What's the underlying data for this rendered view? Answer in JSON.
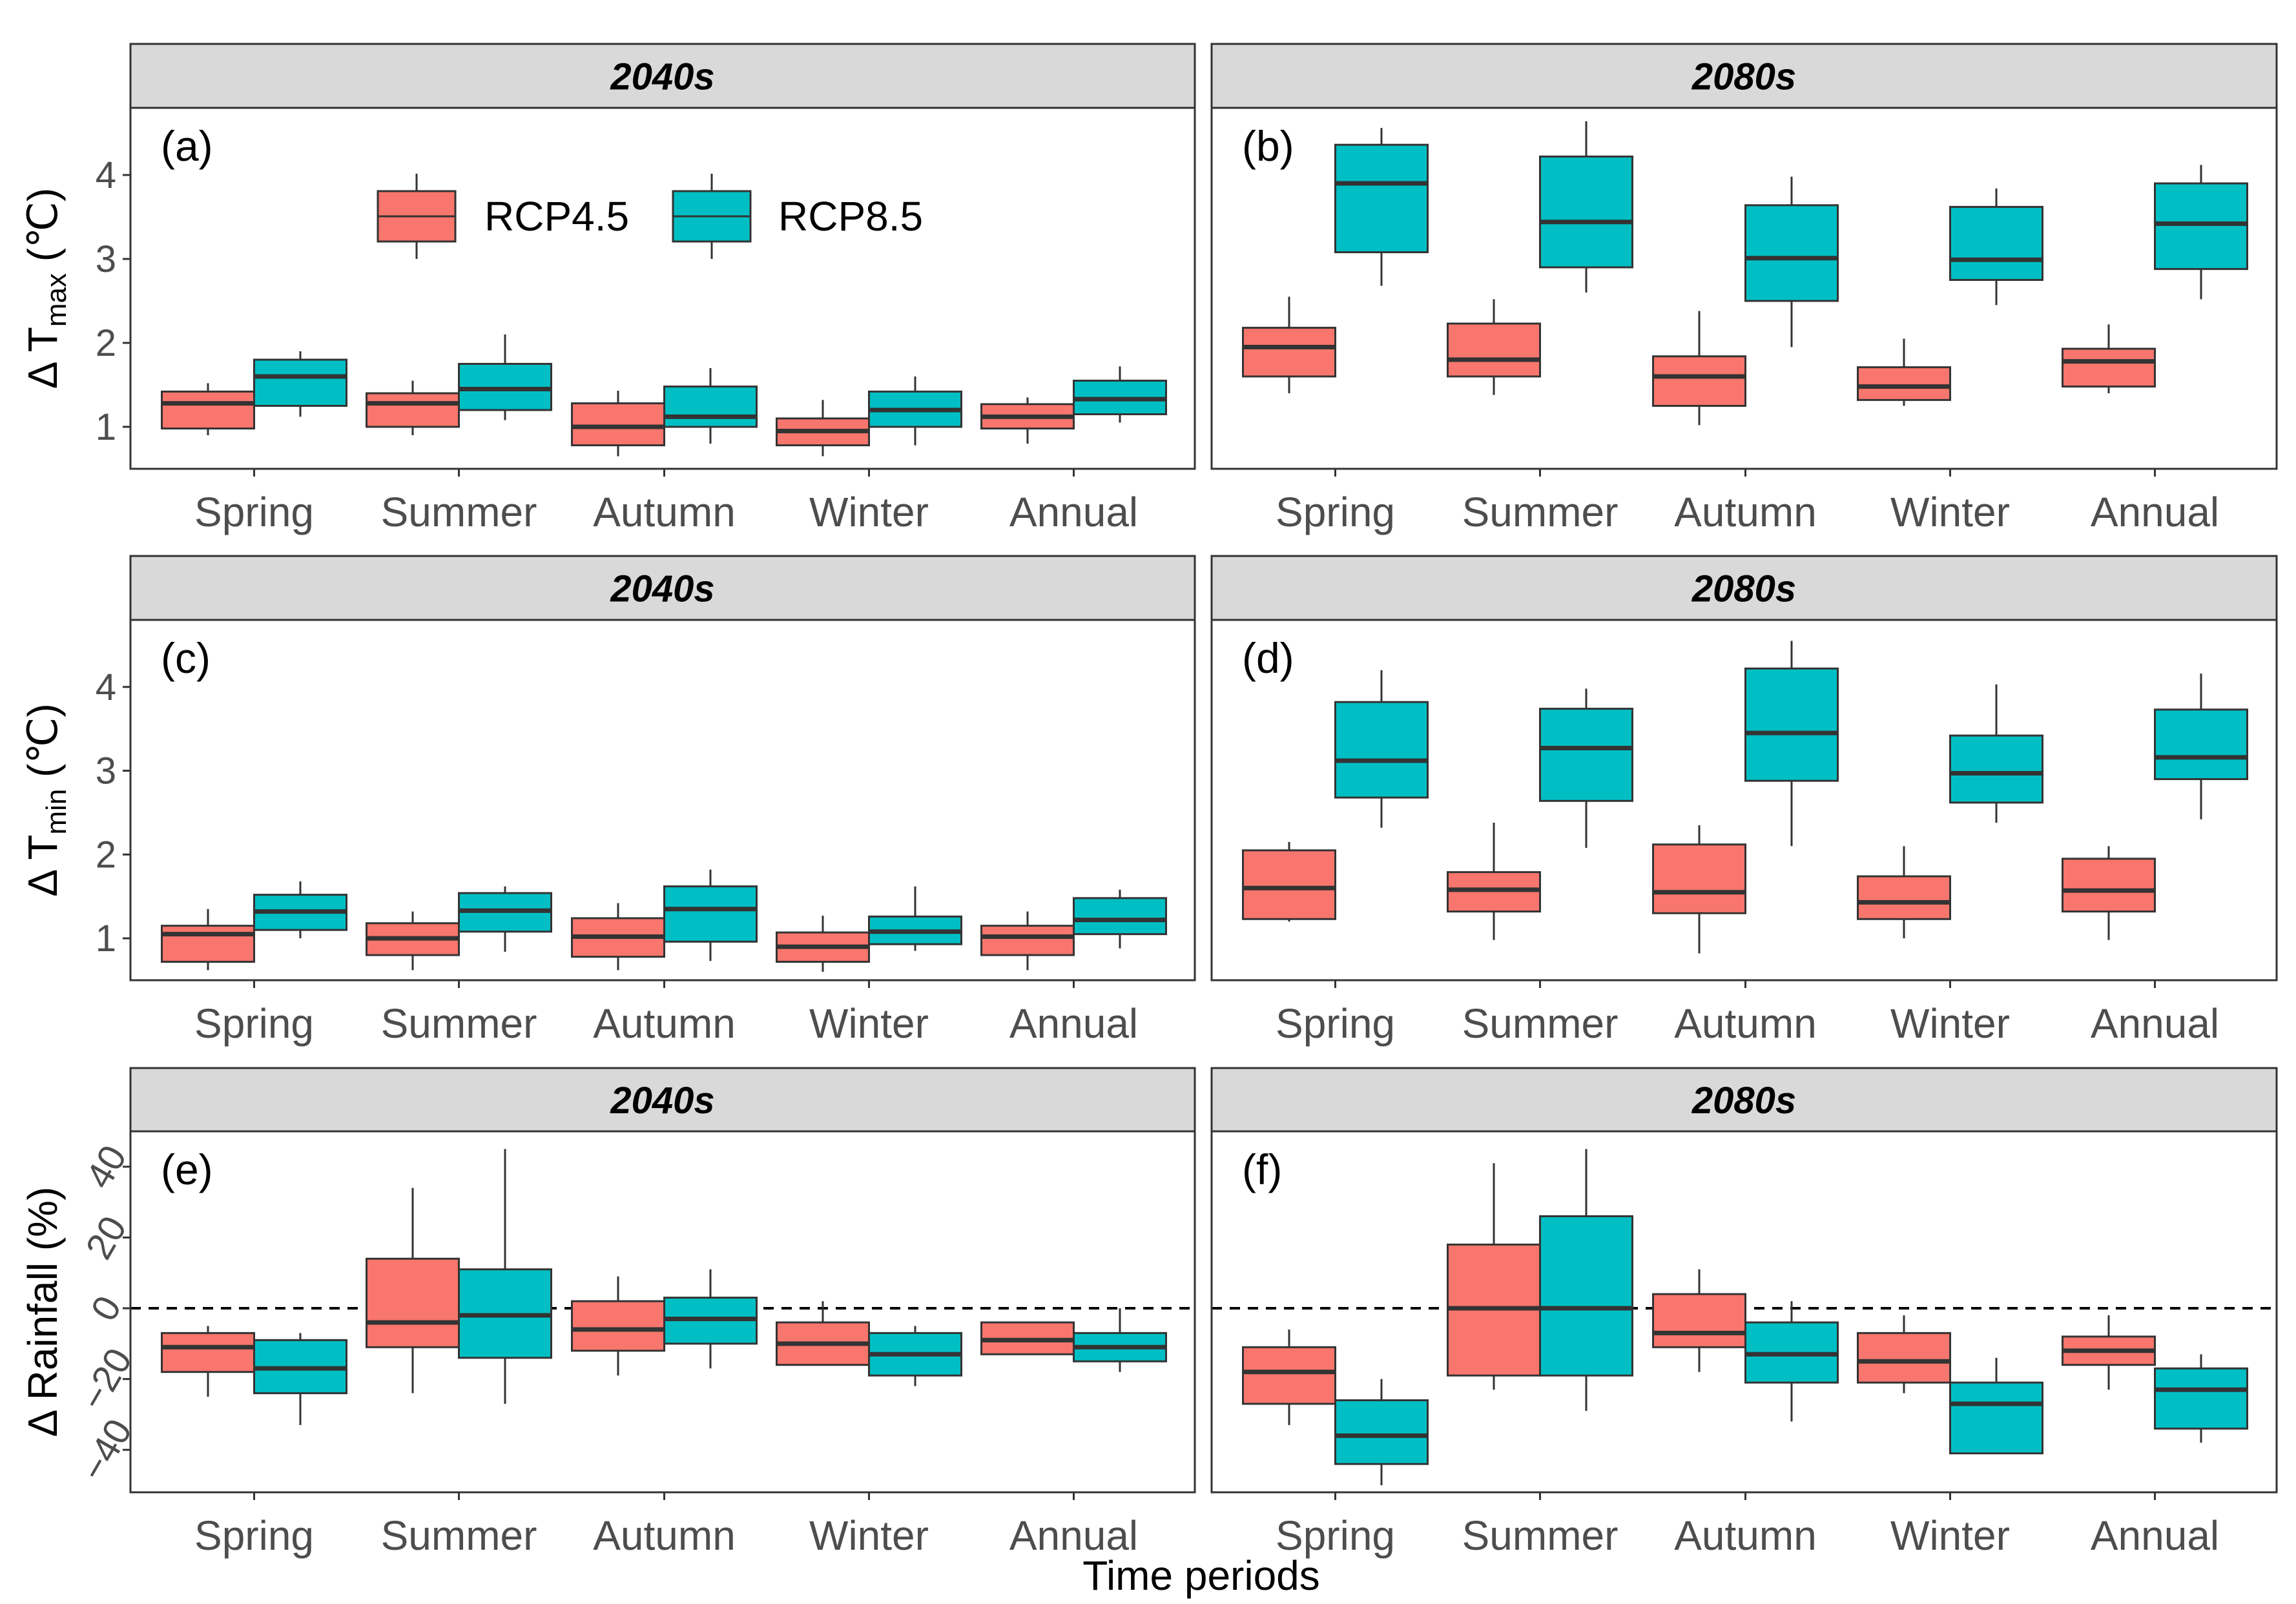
{
  "chart_data": {
    "type": "boxplot",
    "figure_xlabel": "Time periods",
    "legend": {
      "placement": "top-left inside panel (a)",
      "entries": [
        {
          "name": "RCP4.5",
          "color": "#F8766D"
        },
        {
          "name": "RCP8.5",
          "color": "#00BFC4"
        }
      ]
    },
    "categories": [
      "Spring",
      "Summer",
      "Autumn",
      "Winter",
      "Annual"
    ],
    "rows": [
      {
        "ylabel_prefix": "Δ T",
        "ylabel_sub": "max",
        "ylabel_suffix": " (℃)",
        "ylim": [
          0.5,
          4.8
        ],
        "yticks": [
          "1",
          "2",
          "3",
          "4"
        ],
        "ytick_values": [
          1,
          2,
          3,
          4
        ],
        "zero_line": false,
        "panels": [
          {
            "strip": "2040s",
            "label": "(a)",
            "series": [
              {
                "name": "RCP4.5",
                "boxes": [
                  {
                    "min": 0.9,
                    "q1": 0.98,
                    "median": 1.28,
                    "q3": 1.42,
                    "max": 1.52
                  },
                  {
                    "min": 0.9,
                    "q1": 1.0,
                    "median": 1.28,
                    "q3": 1.4,
                    "max": 1.55
                  },
                  {
                    "min": 0.65,
                    "q1": 0.78,
                    "median": 1.0,
                    "q3": 1.28,
                    "max": 1.43
                  },
                  {
                    "min": 0.65,
                    "q1": 0.78,
                    "median": 0.95,
                    "q3": 1.1,
                    "max": 1.32
                  },
                  {
                    "min": 0.8,
                    "q1": 0.98,
                    "median": 1.12,
                    "q3": 1.27,
                    "max": 1.35
                  }
                ]
              },
              {
                "name": "RCP8.5",
                "boxes": [
                  {
                    "min": 1.12,
                    "q1": 1.25,
                    "median": 1.6,
                    "q3": 1.8,
                    "max": 1.9
                  },
                  {
                    "min": 1.08,
                    "q1": 1.2,
                    "median": 1.45,
                    "q3": 1.75,
                    "max": 2.1
                  },
                  {
                    "min": 0.8,
                    "q1": 1.0,
                    "median": 1.12,
                    "q3": 1.48,
                    "max": 1.7
                  },
                  {
                    "min": 0.78,
                    "q1": 1.0,
                    "median": 1.2,
                    "q3": 1.42,
                    "max": 1.6
                  },
                  {
                    "min": 1.05,
                    "q1": 1.15,
                    "median": 1.33,
                    "q3": 1.55,
                    "max": 1.72
                  }
                ]
              }
            ]
          },
          {
            "strip": "2080s",
            "label": "(b)",
            "series": [
              {
                "name": "RCP4.5",
                "boxes": [
                  {
                    "min": 1.4,
                    "q1": 1.6,
                    "median": 1.95,
                    "q3": 2.18,
                    "max": 2.55
                  },
                  {
                    "min": 1.38,
                    "q1": 1.6,
                    "median": 1.8,
                    "q3": 2.23,
                    "max": 2.52
                  },
                  {
                    "min": 1.02,
                    "q1": 1.25,
                    "median": 1.6,
                    "q3": 1.84,
                    "max": 2.38
                  },
                  {
                    "min": 1.25,
                    "q1": 1.32,
                    "median": 1.48,
                    "q3": 1.71,
                    "max": 2.05
                  },
                  {
                    "min": 1.4,
                    "q1": 1.48,
                    "median": 1.78,
                    "q3": 1.93,
                    "max": 2.22
                  }
                ]
              },
              {
                "name": "RCP8.5",
                "boxes": [
                  {
                    "min": 2.68,
                    "q1": 3.08,
                    "median": 3.9,
                    "q3": 4.36,
                    "max": 4.56
                  },
                  {
                    "min": 2.6,
                    "q1": 2.9,
                    "median": 3.44,
                    "q3": 4.22,
                    "max": 4.64
                  },
                  {
                    "min": 1.95,
                    "q1": 2.5,
                    "median": 3.01,
                    "q3": 3.64,
                    "max": 3.98
                  },
                  {
                    "min": 2.45,
                    "q1": 2.75,
                    "median": 2.99,
                    "q3": 3.62,
                    "max": 3.84
                  },
                  {
                    "min": 2.52,
                    "q1": 2.88,
                    "median": 3.42,
                    "q3": 3.9,
                    "max": 4.12
                  }
                ]
              }
            ]
          }
        ]
      },
      {
        "ylabel_prefix": "Δ T",
        "ylabel_sub": "min",
        "ylabel_suffix": " (℃)",
        "ylim": [
          0.5,
          4.8
        ],
        "yticks": [
          "1",
          "2",
          "3",
          "4"
        ],
        "ytick_values": [
          1,
          2,
          3,
          4
        ],
        "zero_line": false,
        "panels": [
          {
            "strip": "2040s",
            "label": "(c)",
            "series": [
              {
                "name": "RCP4.5",
                "boxes": [
                  {
                    "min": 0.62,
                    "q1": 0.72,
                    "median": 1.05,
                    "q3": 1.15,
                    "max": 1.35
                  },
                  {
                    "min": 0.62,
                    "q1": 0.8,
                    "median": 1.0,
                    "q3": 1.18,
                    "max": 1.32
                  },
                  {
                    "min": 0.62,
                    "q1": 0.78,
                    "median": 1.02,
                    "q3": 1.24,
                    "max": 1.42
                  },
                  {
                    "min": 0.6,
                    "q1": 0.72,
                    "median": 0.9,
                    "q3": 1.07,
                    "max": 1.27
                  },
                  {
                    "min": 0.62,
                    "q1": 0.8,
                    "median": 1.02,
                    "q3": 1.15,
                    "max": 1.32
                  }
                ]
              },
              {
                "name": "RCP8.5",
                "boxes": [
                  {
                    "min": 1.0,
                    "q1": 1.1,
                    "median": 1.32,
                    "q3": 1.52,
                    "max": 1.68
                  },
                  {
                    "min": 0.84,
                    "q1": 1.08,
                    "median": 1.33,
                    "q3": 1.54,
                    "max": 1.62
                  },
                  {
                    "min": 0.73,
                    "q1": 0.96,
                    "median": 1.35,
                    "q3": 1.62,
                    "max": 1.82
                  },
                  {
                    "min": 0.85,
                    "q1": 0.93,
                    "median": 1.08,
                    "q3": 1.26,
                    "max": 1.62
                  },
                  {
                    "min": 0.88,
                    "q1": 1.05,
                    "median": 1.22,
                    "q3": 1.48,
                    "max": 1.58
                  }
                ]
              }
            ]
          },
          {
            "strip": "2080s",
            "label": "(d)",
            "series": [
              {
                "name": "RCP4.5",
                "boxes": [
                  {
                    "min": 1.2,
                    "q1": 1.23,
                    "median": 1.6,
                    "q3": 2.05,
                    "max": 2.15
                  },
                  {
                    "min": 0.98,
                    "q1": 1.32,
                    "median": 1.58,
                    "q3": 1.79,
                    "max": 2.38
                  },
                  {
                    "min": 0.82,
                    "q1": 1.3,
                    "median": 1.55,
                    "q3": 2.12,
                    "max": 2.35
                  },
                  {
                    "min": 1.0,
                    "q1": 1.23,
                    "median": 1.43,
                    "q3": 1.74,
                    "max": 2.1
                  },
                  {
                    "min": 0.98,
                    "q1": 1.32,
                    "median": 1.57,
                    "q3": 1.95,
                    "max": 2.1
                  }
                ]
              },
              {
                "name": "RCP8.5",
                "boxes": [
                  {
                    "min": 2.32,
                    "q1": 2.68,
                    "median": 3.12,
                    "q3": 3.82,
                    "max": 4.2
                  },
                  {
                    "min": 2.08,
                    "q1": 2.64,
                    "median": 3.27,
                    "q3": 3.74,
                    "max": 3.98
                  },
                  {
                    "min": 2.1,
                    "q1": 2.88,
                    "median": 3.45,
                    "q3": 4.22,
                    "max": 4.55
                  },
                  {
                    "min": 2.38,
                    "q1": 2.62,
                    "median": 2.97,
                    "q3": 3.42,
                    "max": 4.03
                  },
                  {
                    "min": 2.42,
                    "q1": 2.9,
                    "median": 3.16,
                    "q3": 3.73,
                    "max": 4.16
                  }
                ]
              }
            ]
          }
        ]
      },
      {
        "ylabel_prefix": "Δ Rainfall",
        "ylabel_sub": "",
        "ylabel_suffix": " (%)",
        "ylim": [
          -52,
          50
        ],
        "yticks": [
          "−40",
          "−20",
          "0",
          "20",
          "40"
        ],
        "ytick_values": [
          -40,
          -20,
          0,
          20,
          40
        ],
        "zero_line": true,
        "panels": [
          {
            "strip": "2040s",
            "label": "(e)",
            "series": [
              {
                "name": "RCP4.5",
                "boxes": [
                  {
                    "min": -25,
                    "q1": -18,
                    "median": -11,
                    "q3": -7,
                    "max": -5
                  },
                  {
                    "min": -24,
                    "q1": -11,
                    "median": -4,
                    "q3": 14,
                    "max": 34
                  },
                  {
                    "min": -19,
                    "q1": -12,
                    "median": -6,
                    "q3": 2,
                    "max": 9
                  },
                  {
                    "min": -16,
                    "q1": -16,
                    "median": -10,
                    "q3": -4,
                    "max": 2
                  },
                  {
                    "min": -13,
                    "q1": -13,
                    "median": -9,
                    "q3": -4,
                    "max": -4
                  }
                ]
              },
              {
                "name": "RCP8.5",
                "boxes": [
                  {
                    "min": -33,
                    "q1": -24,
                    "median": -17,
                    "q3": -9,
                    "max": -7
                  },
                  {
                    "min": -27,
                    "q1": -14,
                    "median": -2,
                    "q3": 11,
                    "max": 45
                  },
                  {
                    "min": -17,
                    "q1": -10,
                    "median": -3,
                    "q3": 3,
                    "max": 11
                  },
                  {
                    "min": -22,
                    "q1": -19,
                    "median": -13,
                    "q3": -7,
                    "max": -5
                  },
                  {
                    "min": -18,
                    "q1": -15,
                    "median": -11,
                    "q3": -7,
                    "max": 0
                  }
                ]
              }
            ]
          },
          {
            "strip": "2080s",
            "label": "(f)",
            "series": [
              {
                "name": "RCP4.5",
                "boxes": [
                  {
                    "min": -33,
                    "q1": -27,
                    "median": -18,
                    "q3": -11,
                    "max": -6
                  },
                  {
                    "min": -23,
                    "q1": -19,
                    "median": 0,
                    "q3": 18,
                    "max": 41
                  },
                  {
                    "min": -18,
                    "q1": -11,
                    "median": -7,
                    "q3": 4,
                    "max": 11
                  },
                  {
                    "min": -24,
                    "q1": -21,
                    "median": -15,
                    "q3": -7,
                    "max": -2
                  },
                  {
                    "min": -23,
                    "q1": -16,
                    "median": -12,
                    "q3": -8,
                    "max": -2
                  }
                ]
              },
              {
                "name": "RCP8.5",
                "boxes": [
                  {
                    "min": -50,
                    "q1": -44,
                    "median": -36,
                    "q3": -26,
                    "max": -20
                  },
                  {
                    "min": -29,
                    "q1": -19,
                    "median": 0,
                    "q3": 26,
                    "max": 45
                  },
                  {
                    "min": -32,
                    "q1": -21,
                    "median": -13,
                    "q3": -4,
                    "max": 2
                  },
                  {
                    "min": -41,
                    "q1": -41,
                    "median": -27,
                    "q3": -21,
                    "max": -14
                  },
                  {
                    "min": -38,
                    "q1": -34,
                    "median": -23,
                    "q3": -17,
                    "max": -13
                  }
                ]
              }
            ]
          }
        ]
      }
    ]
  }
}
